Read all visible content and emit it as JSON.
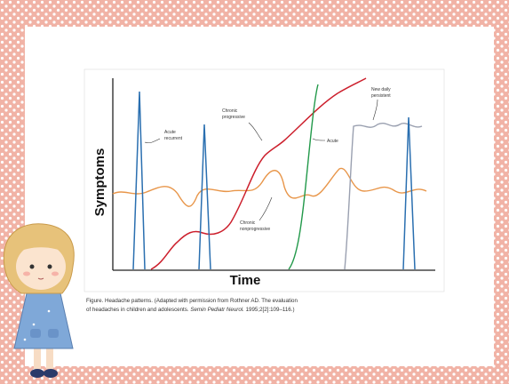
{
  "figure": {
    "y_axis_label": "Symptoms",
    "x_axis_label": "Time",
    "annotations": {
      "acute_recurrent": [
        "Acute",
        "recurrent"
      ],
      "chronic_progressive": [
        "Chronic",
        "progressive"
      ],
      "acute": "Acute",
      "new_daily_persistent": [
        "New daily",
        "persistent"
      ],
      "chronic_nonprogressive": [
        "Chronic",
        "nonprogressive"
      ]
    },
    "caption": {
      "line1": "Figure. Headache patterns. (Adapted with permission from Rothner AD. The evaluation",
      "line2_start": "of headaches in children and adolescents.",
      "journal": "Semin Pediatr Neurol.",
      "line2_end": "1995;2[2]:109–116.)"
    }
  }
}
